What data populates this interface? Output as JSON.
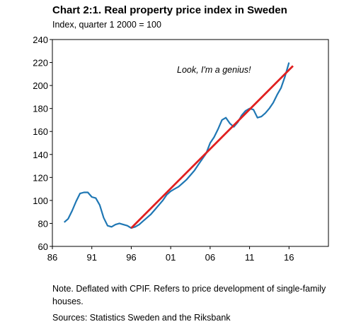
{
  "title": "Chart 2:1. Real property price index in Sweden",
  "subtitle": "Index, quarter 1 2000 = 100",
  "note": "Note. Deflated with CPIF. Refers to price development of single-family houses.",
  "source": "Sources: Statistics Sweden and the Riksbank",
  "chart_data": {
    "type": "line",
    "ylim": [
      60,
      240
    ],
    "yticks": [
      60,
      80,
      100,
      120,
      140,
      160,
      180,
      200,
      220,
      240
    ],
    "xlim": [
      1986,
      2021
    ],
    "xticks": [
      1986,
      1991,
      1996,
      2001,
      2006,
      2011,
      2016
    ],
    "xtick_labels": [
      "86",
      "91",
      "96",
      "01",
      "06",
      "11",
      "16"
    ],
    "grid": false,
    "annotation": "Look, I'm a genius!",
    "series": [
      {
        "color": "#1f77b4",
        "x": [
          1987.5,
          1988.0,
          1988.5,
          1989.0,
          1989.5,
          1990.0,
          1990.5,
          1991.0,
          1991.5,
          1992.0,
          1992.5,
          1993.0,
          1993.5,
          1994.0,
          1994.5,
          1995.0,
          1995.5,
          1996.0,
          1996.5,
          1997.0,
          1997.5,
          1998.0,
          1998.5,
          1999.0,
          1999.5,
          2000.0,
          2000.5,
          2001.0,
          2001.5,
          2002.0,
          2002.5,
          2003.0,
          2003.5,
          2004.0,
          2004.5,
          2005.0,
          2005.5,
          2006.0,
          2006.5,
          2007.0,
          2007.5,
          2008.0,
          2008.5,
          2009.0,
          2009.5,
          2010.0,
          2010.5,
          2011.0,
          2011.5,
          2012.0,
          2012.5,
          2013.0,
          2013.5,
          2014.0,
          2014.5,
          2015.0,
          2015.5,
          2016.0
        ],
        "y": [
          81,
          84,
          91,
          99,
          106,
          107,
          107,
          103,
          102,
          96,
          85,
          78,
          77,
          79,
          80,
          79,
          78,
          76,
          77,
          79,
          82,
          85,
          88,
          92,
          96,
          100,
          105,
          108,
          110,
          112,
          115,
          118,
          122,
          126,
          131,
          136,
          141,
          150,
          155,
          162,
          170,
          172,
          167,
          164,
          168,
          174,
          178,
          180,
          179,
          172,
          173,
          176,
          180,
          185,
          192,
          198,
          208,
          220
        ]
      },
      {
        "color": "#e02020",
        "x": [
          1996.0,
          2016.5
        ],
        "y": [
          76,
          217
        ]
      }
    ]
  }
}
